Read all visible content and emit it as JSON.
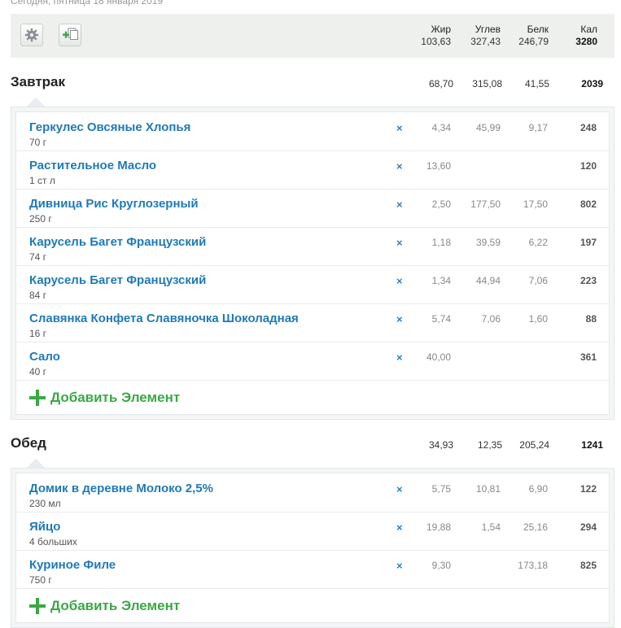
{
  "date_line": "Сегодня, пятница 18 января 2019",
  "summary": {
    "settings_icon": "gear-icon",
    "add_icon": "add-copy-icon",
    "columns": [
      {
        "label": "Жир",
        "value": "103,63"
      },
      {
        "label": "Углев",
        "value": "327,43"
      },
      {
        "label": "Белк",
        "value": "246,79"
      },
      {
        "label": "Кал",
        "value": "3280"
      }
    ]
  },
  "meals": [
    {
      "title": "Завтрак",
      "totals": {
        "fat": "68,70",
        "carbs": "315,08",
        "protein": "41,55",
        "cal": "2039"
      },
      "items": [
        {
          "name": "Геркулес Овсяные Хлопья",
          "qty": "70 г",
          "fat": "4,34",
          "carbs": "45,99",
          "protein": "9,17",
          "cal": "248"
        },
        {
          "name": "Растительное Масло",
          "qty": "1 ст л",
          "fat": "13,60",
          "carbs": "",
          "protein": "",
          "cal": "120"
        },
        {
          "name": "Дивница Рис Круглозерный",
          "qty": "250 г",
          "fat": "2,50",
          "carbs": "177,50",
          "protein": "17,50",
          "cal": "802"
        },
        {
          "name": "Карусель Багет Французский",
          "qty": "74 г",
          "fat": "1,18",
          "carbs": "39,59",
          "protein": "6,22",
          "cal": "197"
        },
        {
          "name": "Карусель Багет Французский",
          "qty": "84 г",
          "fat": "1,34",
          "carbs": "44,94",
          "protein": "7,06",
          "cal": "223"
        },
        {
          "name": "Славянка Конфета Славяночка Шоколадная",
          "qty": "16 г",
          "fat": "5,74",
          "carbs": "7,06",
          "protein": "1,60",
          "cal": "88"
        },
        {
          "name": "Сало",
          "qty": "40 г",
          "fat": "40,00",
          "carbs": "",
          "protein": "",
          "cal": "361"
        }
      ],
      "add_label": "Добавить Элемент"
    },
    {
      "title": "Обед",
      "totals": {
        "fat": "34,93",
        "carbs": "12,35",
        "protein": "205,24",
        "cal": "1241"
      },
      "items": [
        {
          "name": "Домик в деревне Молоко 2,5%",
          "qty": "230 мл",
          "fat": "5,75",
          "carbs": "10,81",
          "protein": "6,90",
          "cal": "122"
        },
        {
          "name": "Яйцо",
          "qty": "4 больших",
          "fat": "19,88",
          "carbs": "1,54",
          "protein": "25,16",
          "cal": "294"
        },
        {
          "name": "Куриное Филе",
          "qty": "750 г",
          "fat": "9,30",
          "carbs": "",
          "protein": "173,18",
          "cal": "825"
        }
      ],
      "add_label": "Добавить Элемент"
    }
  ],
  "delete_glyph": "×",
  "colors": {
    "link": "#1f7ab8",
    "add": "#3aa845",
    "summary_bg": "#eef0ed"
  }
}
